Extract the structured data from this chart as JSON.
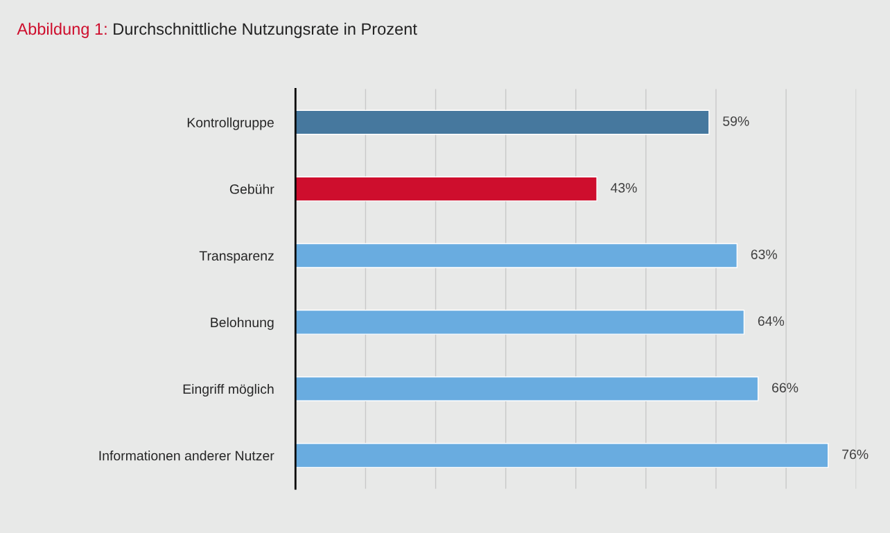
{
  "chart_data": {
    "type": "bar",
    "orientation": "horizontal",
    "title": "Abbildung 1:",
    "subtitle": "Durchschnittliche Nutzungsrate in Prozent",
    "categories": [
      "Kontrollgruppe",
      "Gebühr",
      "Transparenz",
      "Belohnung",
      "Eingriff möglich",
      "Informationen anderer Nutzer"
    ],
    "values": [
      59,
      43,
      63,
      64,
      66,
      76
    ],
    "colors": [
      "#46789e",
      "#ce0e2d",
      "#69ace0",
      "#69ace0",
      "#69ace0",
      "#69ace0"
    ],
    "value_labels": [
      "59%",
      "43%",
      "63%",
      "64%",
      "66%",
      "76%"
    ],
    "xlim": [
      0,
      80
    ],
    "xticks": [
      {
        "value": 0,
        "label": null
      },
      {
        "value": 10,
        "label": null
      },
      {
        "value": 20,
        "label": null
      },
      {
        "value": 30,
        "label": null
      },
      {
        "value": 40,
        "label": null
      },
      {
        "value": 50,
        "label": null
      },
      {
        "value": 60,
        "label": null
      },
      {
        "value": 70,
        "label": null
      },
      {
        "value": 80,
        "label": null
      }
    ],
    "grid": "x",
    "tick_labels": "y",
    "legend": false
  }
}
